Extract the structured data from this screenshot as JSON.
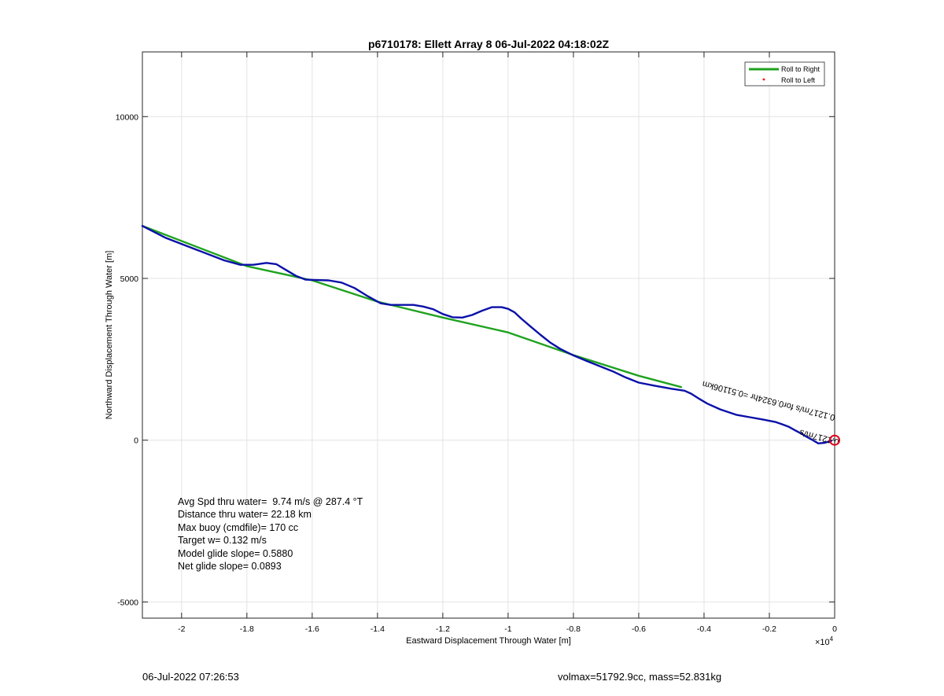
{
  "chart_data": {
    "type": "line",
    "title": "p6710178: Ellett Array 8 06-Jul-2022 04:18:02Z",
    "xlabel": "Eastward Displacement Through Water [m]",
    "ylabel": "Northward Displacement Through Water [m]",
    "x_multiplier_label": "×10",
    "x_multiplier_exp": "4",
    "xlim": [
      -2.12,
      0
    ],
    "ylim": [
      -5500,
      12000
    ],
    "x_ticks": [
      -2,
      -1.8,
      -1.6,
      -1.4,
      -1.2,
      -1,
      -0.8,
      -0.6,
      -0.4,
      -0.2,
      0
    ],
    "x_tick_labels": [
      "-2",
      "-1.8",
      "-1.6",
      "-1.4",
      "-1.2",
      "-1",
      "-0.8",
      "-0.6",
      "-0.4",
      "-0.2",
      "0"
    ],
    "y_ticks": [
      -5000,
      0,
      5000,
      10000
    ],
    "y_tick_labels": [
      "-5000",
      "0",
      "5000",
      "10000"
    ],
    "grid": true,
    "legend_position": "top-right",
    "series": [
      {
        "name": "Roll to Right",
        "color": "#1fa21f",
        "x": [
          -2.12,
          -1.8,
          -1.6,
          -1.4,
          -1.2,
          -1.0,
          -0.8,
          -0.6,
          -0.47
        ],
        "y": [
          6620,
          5380,
          4940,
          4280,
          3790,
          3330,
          2630,
          1990,
          1640
        ]
      },
      {
        "name": "Roll to Left",
        "color": "#ff0000",
        "x": [],
        "y": []
      },
      {
        "name": "",
        "color": "#0a10a8",
        "x": [
          -2.12,
          -2.05,
          -1.95,
          -1.87,
          -1.82,
          -1.78,
          -1.74,
          -1.71,
          -1.68,
          -1.65,
          -1.62,
          -1.59,
          -1.55,
          -1.51,
          -1.47,
          -1.43,
          -1.39,
          -1.36,
          -1.33,
          -1.29,
          -1.26,
          -1.23,
          -1.2,
          -1.17,
          -1.14,
          -1.11,
          -1.08,
          -1.05,
          -1.02,
          -1.0,
          -0.98,
          -0.96,
          -0.93,
          -0.9,
          -0.87,
          -0.84,
          -0.8,
          -0.76,
          -0.72,
          -0.68,
          -0.64,
          -0.6,
          -0.55,
          -0.5,
          -0.46,
          -0.44,
          -0.42,
          -0.39,
          -0.35,
          -0.3,
          -0.26,
          -0.22,
          -0.18,
          -0.16,
          -0.14,
          -0.12,
          -0.1,
          -0.085,
          -0.07,
          -0.05,
          -0.03,
          -0.01
        ],
        "y": [
          6620,
          6260,
          5870,
          5560,
          5420,
          5420,
          5480,
          5440,
          5260,
          5080,
          4960,
          4950,
          4940,
          4870,
          4700,
          4450,
          4230,
          4180,
          4180,
          4180,
          4130,
          4050,
          3900,
          3800,
          3790,
          3870,
          4000,
          4110,
          4110,
          4060,
          3950,
          3760,
          3500,
          3250,
          3010,
          2820,
          2620,
          2450,
          2290,
          2130,
          1940,
          1780,
          1680,
          1590,
          1530,
          1440,
          1310,
          1130,
          950,
          780,
          710,
          640,
          560,
          490,
          410,
          300,
          190,
          100,
          20,
          -100,
          -80,
          -20
        ]
      }
    ],
    "annotations": [
      {
        "text": "0.1217m/s for0.6324hr =0.51106km",
        "x": -0.2,
        "y": 1300,
        "rotate_deg": 194.5,
        "color": "#000000"
      },
      {
        "text": "0.1217m/s",
        "x": -0.045,
        "y": 170,
        "rotate_deg": 194.5,
        "color": "#000000"
      }
    ],
    "end_marker": {
      "x": 0,
      "y": 0,
      "color": "#e0001b"
    }
  },
  "stats": [
    "Avg Spd thru water=  9.74 m/s @ 287.4 °T",
    "Distance thru water= 22.18 km",
    "Max buoy (cmdfile)= 170 cc",
    "Target w= 0.132 m/s",
    "Model glide slope= 0.5880",
    "Net glide slope= 0.0893"
  ],
  "footer": {
    "left": "06-Jul-2022 07:26:53",
    "right": "volmax=51792.9cc, mass=52.831kg"
  }
}
